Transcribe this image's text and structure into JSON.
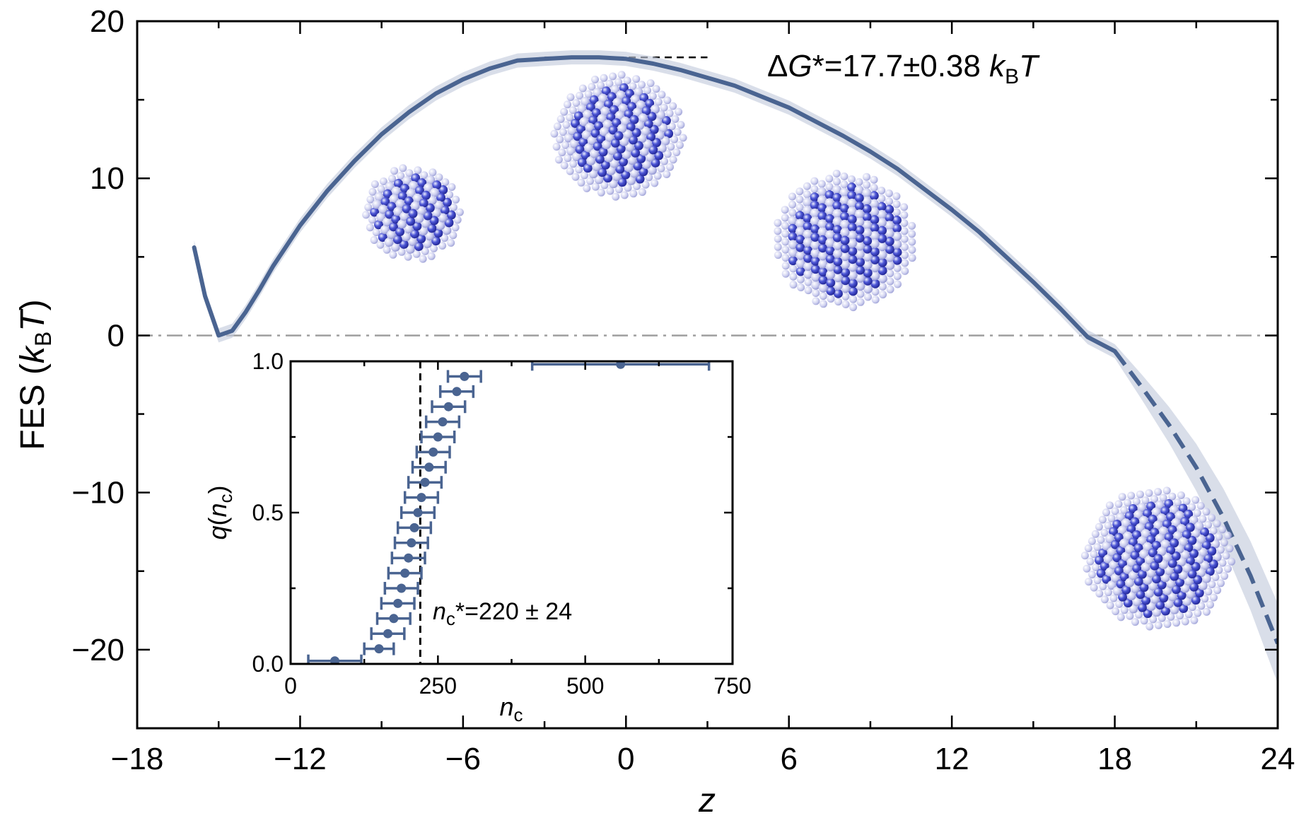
{
  "chart_data": [
    {
      "id": "main",
      "type": "line",
      "title": "",
      "xlabel": "z",
      "ylabel_prefix": "FES (",
      "ylabel_k": "k",
      "ylabel_sub": "B",
      "ylabel_T": "T",
      "ylabel_suffix": ")",
      "xlim": [
        -18,
        24
      ],
      "ylim": [
        -25,
        20
      ],
      "xticks": [
        -18,
        -12,
        -6,
        0,
        6,
        12,
        18,
        24
      ],
      "xtick_labels": [
        "−18",
        "−12",
        "−6",
        "0",
        "6",
        "12",
        "18",
        "24"
      ],
      "yticks": [
        -20,
        -10,
        0,
        10,
        20
      ],
      "ytick_labels": [
        "−20",
        "−10",
        "0",
        "10",
        "20"
      ],
      "series": [
        {
          "name": "FES",
          "color": "#4a6491",
          "solid": {
            "x": [
              -15.9,
              -15.5,
              -15.0,
              -14.5,
              -14.0,
              -13.5,
              -13.0,
              -12.5,
              -12.0,
              -11.0,
              -10.0,
              -9.0,
              -8.0,
              -7.0,
              -6.0,
              -5.0,
              -4.0,
              -3.0,
              -2.0,
              -1.0,
              0.0,
              1.0,
              2.0,
              3.0,
              4.0,
              5.0,
              6.0,
              7.0,
              8.0,
              9.0,
              10.0,
              11.0,
              12.0,
              13.0,
              14.0,
              15.0,
              16.0,
              17.0,
              18.0
            ],
            "y": [
              5.6,
              2.5,
              0.0,
              0.3,
              1.5,
              2.9,
              4.4,
              5.7,
              7.0,
              9.2,
              11.1,
              12.8,
              14.2,
              15.4,
              16.3,
              17.0,
              17.5,
              17.6,
              17.7,
              17.7,
              17.6,
              17.3,
              16.9,
              16.4,
              15.9,
              15.2,
              14.5,
              13.6,
              12.7,
              11.7,
              10.6,
              9.3,
              8.0,
              6.6,
              5.0,
              3.4,
              1.7,
              -0.1,
              -1.0
            ]
          },
          "dashed": {
            "x": [
              18.0,
              19.0,
              20.0,
              21.0,
              22.0,
              23.0,
              24.0
            ],
            "y": [
              -1.0,
              -3.3,
              -5.7,
              -8.4,
              -11.6,
              -15.3,
              -19.6
            ]
          }
        }
      ],
      "band_halfwidth": 0.45,
      "reference_lines": {
        "zero_line": {
          "y": 0,
          "style": "dash-dot",
          "color": "#9e9e9e"
        },
        "barrier_line": {
          "y": 17.7,
          "x_range": [
            -3,
            3
          ],
          "style": "dashed",
          "color": "#000000"
        }
      },
      "annotation": {
        "prefix": "Δ",
        "G": "G",
        "middle": "*=17.7±0.38 ",
        "k": "k",
        "sub": "B",
        "T": "T"
      },
      "snapshot_images": [
        "crystal-cluster-small",
        "crystal-cluster-critical",
        "crystal-cluster-large",
        "crystal-cluster-largest"
      ]
    },
    {
      "id": "inset",
      "type": "scatter",
      "xlabel_n": "n",
      "xlabel_sub": "c",
      "ylabel_q": "q",
      "ylabel_open": "(",
      "ylabel_n": "n",
      "ylabel_sub": "c",
      "ylabel_close": ")",
      "xlim": [
        0,
        750
      ],
      "ylim": [
        0,
        1.0
      ],
      "xticks": [
        0,
        250,
        500,
        750
      ],
      "xtick_labels": [
        "0",
        "250",
        "500",
        "750"
      ],
      "yticks": [
        0,
        0.5,
        1.0
      ],
      "ytick_labels": [
        "0.0",
        "0.5",
        "1.0"
      ],
      "color": "#4a6491",
      "points": {
        "x": [
          75,
          150,
          165,
          175,
          182,
          188,
          194,
          200,
          205,
          210,
          216,
          222,
          228,
          235,
          242,
          250,
          258,
          268,
          282,
          295,
          560
        ],
        "y": [
          0.01,
          0.05,
          0.1,
          0.15,
          0.2,
          0.25,
          0.3,
          0.35,
          0.4,
          0.45,
          0.5,
          0.55,
          0.6,
          0.65,
          0.7,
          0.75,
          0.8,
          0.85,
          0.9,
          0.95,
          0.99
        ],
        "xerr": [
          45,
          25,
          28,
          28,
          28,
          28,
          28,
          28,
          28,
          28,
          28,
          28,
          28,
          28,
          28,
          28,
          28,
          28,
          28,
          28,
          150
        ]
      },
      "critical_line": {
        "x": 220,
        "style": "dashed",
        "color": "#000000"
      },
      "annotation": {
        "n": "n",
        "sub": "c",
        "rest": "*=220 ± 24"
      }
    }
  ]
}
